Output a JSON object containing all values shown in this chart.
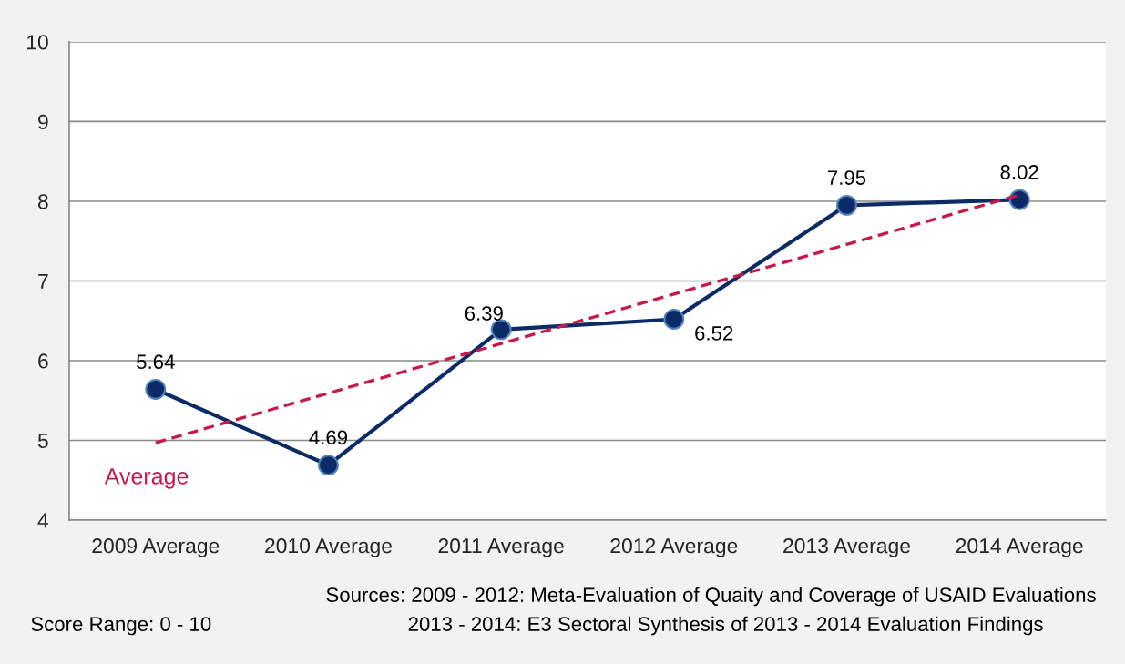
{
  "chart_data": {
    "type": "line",
    "categories": [
      "2009 Average",
      "2010 Average",
      "2011 Average",
      "2012 Average",
      "2013 Average",
      "2014 Average"
    ],
    "series": [
      {
        "color": "#0b2a66",
        "marker": "circle",
        "data_labels": true,
        "values": [
          5.64,
          4.69,
          6.39,
          6.52,
          7.95,
          8.02
        ]
      },
      {
        "name": "Average",
        "color": "#c8194b",
        "line_style": "dashed",
        "marker": "none",
        "x": [
          "2009 Average",
          "2014 Average"
        ],
        "values": [
          4.97,
          8.08
        ]
      }
    ],
    "ylim": [
      4,
      10
    ],
    "yticks": [
      4,
      5,
      6,
      7,
      8,
      9,
      10
    ],
    "grid": "y",
    "annotations": [
      "Score Range: 0 - 10",
      "Sources: 2009 - 2012: Meta-Evaluation of Quaity and Coverage of USAID Evaluations",
      "2013 - 2014: E3 Sectoral Synthesis of 2013 - 2014 Evaluation Findings"
    ]
  }
}
